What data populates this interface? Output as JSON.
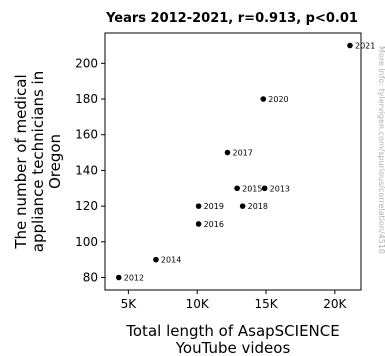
{
  "chart_data": {
    "type": "scatter",
    "title": "Years 2012-2021, r=0.913, p<0.01",
    "xlabel": [
      "Total length of AsapSCIENCE",
      "YouTube videos"
    ],
    "ylabel": [
      "The number of medical",
      "appliance technicians in",
      "Oregon"
    ],
    "xlim": [
      3300,
      21900
    ],
    "ylim": [
      73,
      217
    ],
    "x_ticks": [
      5000,
      10000,
      15000,
      20000
    ],
    "x_tick_labels": [
      "5K",
      "10K",
      "15K",
      "20K"
    ],
    "y_ticks": [
      80,
      100,
      120,
      140,
      160,
      180,
      200
    ],
    "y_tick_labels": [
      "80",
      "100",
      "120",
      "140",
      "160",
      "180",
      "200"
    ],
    "grid": false,
    "legend": "none",
    "points": [
      {
        "label": "2012",
        "x": 4300,
        "y": 80
      },
      {
        "label": "2013",
        "x": 14900,
        "y": 130
      },
      {
        "label": "2014",
        "x": 7000,
        "y": 90
      },
      {
        "label": "2015",
        "x": 12900,
        "y": 130
      },
      {
        "label": "2016",
        "x": 10100,
        "y": 110
      },
      {
        "label": "2017",
        "x": 12200,
        "y": 150
      },
      {
        "label": "2018",
        "x": 13300,
        "y": 120
      },
      {
        "label": "2019",
        "x": 10100,
        "y": 120
      },
      {
        "label": "2020",
        "x": 14800,
        "y": 180
      },
      {
        "label": "2021",
        "x": 21100,
        "y": 210
      }
    ],
    "point_color": "#000000",
    "side_note": "More info: tylervigen.com/spurious/correlation/4510"
  }
}
